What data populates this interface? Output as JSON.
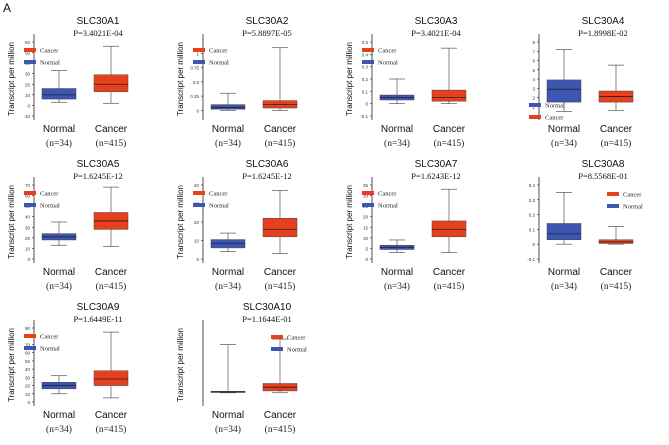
{
  "figure": {
    "panel_label": "A",
    "legend_labels": {
      "cancer": "Cancer",
      "normal": "Normal"
    },
    "colors": {
      "cancer": "#e8401c",
      "normal": "#3d55b3",
      "axis": "#222222",
      "whisker": "#555555"
    }
  },
  "chart_data": [
    {
      "type": "boxplot",
      "title": "SLC30A1",
      "pvalue": "P=3.4021E-04",
      "ylabel": "Transcript per million",
      "ylim": [
        -10,
        60
      ],
      "yticks": [
        -10,
        0,
        10,
        20,
        30,
        40,
        50,
        60
      ],
      "ytick_labels": [
        "-10",
        "0",
        "10",
        "20",
        "30",
        "40",
        "50",
        "60"
      ],
      "legend_position": "left",
      "legend_order": [
        "Cancer",
        "Normal"
      ],
      "groups": [
        {
          "key": "normal",
          "name": "Normal",
          "n": "(n=34)",
          "whisker_low": 3,
          "q1": 6,
          "median": 10,
          "q3": 16,
          "whisker_high": 33
        },
        {
          "key": "cancer",
          "name": "Cancer",
          "n": "(n=415)",
          "whisker_low": 2,
          "q1": 13,
          "median": 20,
          "q3": 29,
          "whisker_high": 56
        }
      ]
    },
    {
      "type": "boxplot",
      "title": "SLC30A2",
      "pvalue": "P=5.8897E-05",
      "ylabel": "Transcript per million",
      "ylim": [
        -0.1,
        1.2
      ],
      "yticks": [
        0,
        0.25,
        0.5,
        0.75,
        1
      ],
      "ytick_labels": [
        "0",
        "0.25",
        "0.5",
        "0.75",
        "1"
      ],
      "legend_position": "left",
      "legend_order": [
        "Cancer",
        "Normal"
      ],
      "groups": [
        {
          "key": "normal",
          "name": "Normal",
          "n": "(n=34)",
          "whisker_low": 0,
          "q1": 0.02,
          "median": 0.05,
          "q3": 0.1,
          "whisker_high": 0.3
        },
        {
          "key": "cancer",
          "name": "Cancer",
          "n": "(n=415)",
          "whisker_low": 0,
          "q1": 0.04,
          "median": 0.1,
          "q3": 0.17,
          "whisker_high": 1.1
        }
      ]
    },
    {
      "type": "boxplot",
      "title": "SLC30A3",
      "pvalue": "P=3.4021E-04",
      "ylabel": "Transcript per million",
      "ylim": [
        -0.1,
        0.5
      ],
      "yticks": [
        -0.1,
        0,
        0.1,
        0.2,
        0.3,
        0.4,
        0.5
      ],
      "ytick_labels": [
        "-0.1",
        "0",
        "0.1",
        "0.2",
        "0.3",
        "0.4",
        "0.5"
      ],
      "legend_position": "left",
      "legend_order": [
        "Cancer",
        "Normal"
      ],
      "groups": [
        {
          "key": "normal",
          "name": "Normal",
          "n": "(n=34)",
          "whisker_low": 0,
          "q1": 0.03,
          "median": 0.05,
          "q3": 0.07,
          "whisker_high": 0.2
        },
        {
          "key": "cancer",
          "name": "Cancer",
          "n": "(n=415)",
          "whisker_low": 0,
          "q1": 0.02,
          "median": 0.05,
          "q3": 0.11,
          "whisker_high": 0.45
        }
      ]
    },
    {
      "type": "boxplot",
      "title": "SLC30A4",
      "pvalue": "P=1.8998E-02",
      "ylabel": "",
      "ylim": [
        0,
        8
      ],
      "yticks": [
        0,
        1,
        2,
        3,
        4,
        5,
        6,
        7,
        8
      ],
      "ytick_labels": [
        "0",
        "1",
        "2",
        "3",
        "4",
        "5",
        "6",
        "7",
        "8"
      ],
      "legend_position": "bottom-left",
      "legend_order": [
        "Normal",
        "Cancer"
      ],
      "groups": [
        {
          "key": "normal",
          "name": "Normal",
          "n": "(n=34)",
          "whisker_low": 0.5,
          "q1": 1.5,
          "median": 2.9,
          "q3": 3.9,
          "whisker_high": 7.2
        },
        {
          "key": "cancer",
          "name": "Cancer",
          "n": "(n=415)",
          "whisker_low": 0.6,
          "q1": 1.5,
          "median": 2.1,
          "q3": 2.7,
          "whisker_high": 5.5
        }
      ]
    },
    {
      "type": "boxplot",
      "title": "SLC30A5",
      "pvalue": "P=1.6245E-12",
      "ylabel": "Transcript per million",
      "ylim": [
        0,
        70
      ],
      "yticks": [
        0,
        10,
        20,
        30,
        40,
        50,
        60,
        70
      ],
      "ytick_labels": [
        "0",
        "10",
        "20",
        "30",
        "40",
        "50",
        "60",
        "70"
      ],
      "legend_position": "left",
      "legend_order": [
        "Cancer",
        "Normal"
      ],
      "groups": [
        {
          "key": "normal",
          "name": "Normal",
          "n": "(n=34)",
          "whisker_low": 13,
          "q1": 18,
          "median": 21,
          "q3": 24,
          "whisker_high": 35
        },
        {
          "key": "cancer",
          "name": "Cancer",
          "n": "(n=415)",
          "whisker_low": 12,
          "q1": 28,
          "median": 36,
          "q3": 44,
          "whisker_high": 68
        }
      ]
    },
    {
      "type": "boxplot",
      "title": "SLC30A6",
      "pvalue": "P=1.6245E-12",
      "ylabel": "Transcript per million",
      "ylim": [
        0,
        40
      ],
      "yticks": [
        0,
        10,
        20,
        30,
        40
      ],
      "ytick_labels": [
        "0",
        "10",
        "20",
        "30",
        "40"
      ],
      "legend_position": "left",
      "legend_order": [
        "Cancer",
        "Normal"
      ],
      "groups": [
        {
          "key": "normal",
          "name": "Normal",
          "n": "(n=34)",
          "whisker_low": 4,
          "q1": 6,
          "median": 8.5,
          "q3": 10.5,
          "whisker_high": 14
        },
        {
          "key": "cancer",
          "name": "Cancer",
          "n": "(n=415)",
          "whisker_low": 3,
          "q1": 12,
          "median": 16,
          "q3": 22,
          "whisker_high": 37
        }
      ]
    },
    {
      "type": "boxplot",
      "title": "SLC30A7",
      "pvalue": "P=1.6243E-12",
      "ylabel": "Transcript per million",
      "ylim": [
        0,
        35
      ],
      "yticks": [
        0,
        5,
        10,
        15,
        20,
        25,
        30,
        35
      ],
      "ytick_labels": [
        "0",
        "5",
        "10",
        "15",
        "20",
        "25",
        "30",
        "35"
      ],
      "legend_position": "left",
      "legend_order": [
        "Cancer",
        "Normal"
      ],
      "groups": [
        {
          "key": "normal",
          "name": "Normal",
          "n": "(n=34)",
          "whisker_low": 3,
          "q1": 4.5,
          "median": 5.5,
          "q3": 6.5,
          "whisker_high": 9
        },
        {
          "key": "cancer",
          "name": "Cancer",
          "n": "(n=415)",
          "whisker_low": 3,
          "q1": 10.5,
          "median": 14,
          "q3": 18,
          "whisker_high": 33
        }
      ]
    },
    {
      "type": "boxplot",
      "title": "SLC30A8",
      "pvalue": "P=8.5568E-01",
      "ylabel": "",
      "ylim": [
        -0.1,
        0.4
      ],
      "yticks": [
        -0.1,
        0,
        0.1,
        0.2,
        0.3,
        0.4
      ],
      "ytick_labels": [
        "-0.1",
        "0",
        "0.1",
        "0.2",
        "0.3",
        "0.4"
      ],
      "legend_position": "right",
      "legend_order": [
        "Cancer",
        "Normal"
      ],
      "groups": [
        {
          "key": "normal",
          "name": "Normal",
          "n": "(n=34)",
          "whisker_low": 0,
          "q1": 0.03,
          "median": 0.07,
          "q3": 0.14,
          "whisker_high": 0.35
        },
        {
          "key": "cancer",
          "name": "Cancer",
          "n": "(n=415)",
          "whisker_low": 0,
          "q1": 0.005,
          "median": 0.015,
          "q3": 0.03,
          "whisker_high": 0.12
        }
      ]
    },
    {
      "type": "boxplot",
      "title": "SLC30A9",
      "pvalue": "P=1.6449E-11",
      "ylabel": "Transcript per million",
      "ylim": [
        0,
        90
      ],
      "yticks": [
        0,
        10,
        20,
        30,
        40,
        50,
        60,
        70,
        80,
        90
      ],
      "ytick_labels": [
        "0",
        "10",
        "20",
        "30",
        "40",
        "50",
        "60",
        "70",
        "80",
        "90"
      ],
      "legend_position": "left",
      "legend_order": [
        "Cancer",
        "Normal"
      ],
      "groups": [
        {
          "key": "normal",
          "name": "Normal",
          "n": "(n=34)",
          "whisker_low": 10,
          "q1": 16,
          "median": 20,
          "q3": 24,
          "whisker_high": 32
        },
        {
          "key": "cancer",
          "name": "Cancer",
          "n": "(n=415)",
          "whisker_low": 5,
          "q1": 20,
          "median": 28,
          "q3": 38,
          "whisker_high": 85
        }
      ]
    },
    {
      "type": "boxplot",
      "title": "SLC30A10",
      "pvalue": "P=1.1644E-01",
      "ylabel": "Transcript per million",
      "ylim": [
        -0.05,
        0.35
      ],
      "yticks": [],
      "ytick_labels": [],
      "legend_position": "right",
      "legend_order": [
        "Cancer",
        "Normal"
      ],
      "groups": [
        {
          "key": "normal",
          "name": "Normal",
          "n": "(n=34)",
          "whisker_low": 0,
          "q1": 0.002,
          "median": 0.004,
          "q3": 0.008,
          "whisker_high": 0.26
        },
        {
          "key": "cancer",
          "name": "Cancer",
          "n": "(n=415)",
          "whisker_low": 0,
          "q1": 0.01,
          "median": 0.03,
          "q3": 0.05,
          "whisker_high": 0.29
        }
      ]
    }
  ]
}
